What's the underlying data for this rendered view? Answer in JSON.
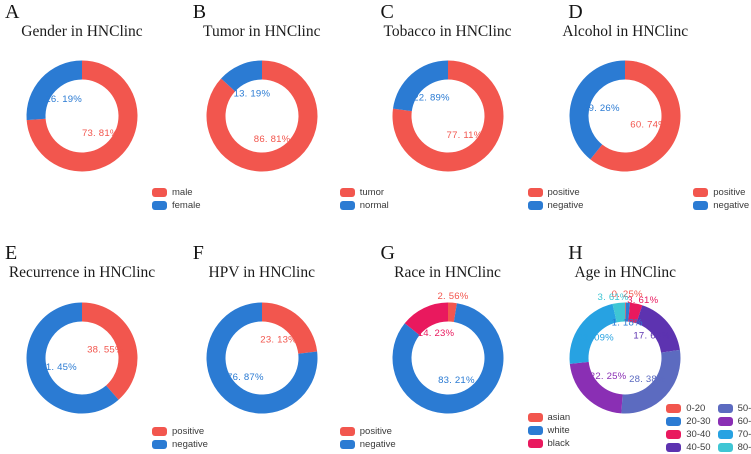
{
  "figure": {
    "background": "#ffffff"
  },
  "chart_data": [
    {
      "type": "pie",
      "subtype": "donut",
      "panel_letter": "A",
      "title": "Gender in HNClinc",
      "labels": [
        "male",
        "female"
      ],
      "values": [
        73.81,
        26.19
      ],
      "value_texts": [
        "73. 81%",
        "26. 19%"
      ],
      "colors": [
        "#f2564e",
        "#2b7bd3"
      ],
      "legend_position": "bottom-right"
    },
    {
      "type": "pie",
      "subtype": "donut",
      "panel_letter": "B",
      "title": "Tumor in HNClinc",
      "labels": [
        "tumor",
        "normal"
      ],
      "values": [
        86.81,
        13.19
      ],
      "value_texts": [
        "86. 81%",
        "13. 19%"
      ],
      "colors": [
        "#f2564e",
        "#2b7bd3"
      ],
      "legend_position": "bottom-right"
    },
    {
      "type": "pie",
      "subtype": "donut",
      "panel_letter": "C",
      "title": "Tobacco in HNClinc",
      "labels": [
        "positive",
        "negative"
      ],
      "values": [
        77.11,
        22.89
      ],
      "value_texts": [
        "77. 11%",
        "22. 89%"
      ],
      "colors": [
        "#f2564e",
        "#2b7bd3"
      ],
      "legend_position": "bottom-right"
    },
    {
      "type": "pie",
      "subtype": "donut",
      "panel_letter": "D",
      "title": "Alcohol in HNClinc",
      "labels": [
        "positive",
        "negative"
      ],
      "values": [
        60.74,
        39.26
      ],
      "value_texts": [
        "60. 74%",
        "39. 26%"
      ],
      "colors": [
        "#f2564e",
        "#2b7bd3"
      ],
      "legend_position": "bottom-right"
    },
    {
      "type": "pie",
      "subtype": "donut",
      "panel_letter": "E",
      "title": "Recurrence in HNClinc",
      "labels": [
        "positive",
        "negative"
      ],
      "values": [
        38.55,
        61.45
      ],
      "value_texts": [
        "38. 55%",
        "61. 45%"
      ],
      "colors": [
        "#f2564e",
        "#2b7bd3"
      ],
      "legend_position": "bottom-right"
    },
    {
      "type": "pie",
      "subtype": "donut",
      "panel_letter": "F",
      "title": "HPV in HNClinc",
      "labels": [
        "positive",
        "negative"
      ],
      "values": [
        23.13,
        76.87
      ],
      "value_texts": [
        "23. 13%",
        "76. 87%"
      ],
      "colors": [
        "#f2564e",
        "#2b7bd3"
      ],
      "legend_position": "bottom-right"
    },
    {
      "type": "pie",
      "subtype": "donut",
      "panel_letter": "G",
      "title": "Race in HNClinc",
      "labels": [
        "asian",
        "white",
        "black"
      ],
      "values": [
        2.56,
        83.21,
        14.23
      ],
      "value_texts": [
        "2. 56%",
        "83. 21%",
        "14. 23%"
      ],
      "colors": [
        "#f2564e",
        "#2b7bd3",
        "#e9195e"
      ],
      "label_r": [
        1.12,
        0.42,
        0.5
      ],
      "legend_position": "bottom-right"
    },
    {
      "type": "pie",
      "subtype": "donut",
      "panel_letter": "H",
      "title": "Age in HNClinc",
      "labels": [
        "0-20",
        "20-30",
        "30-40",
        "40-50",
        "50-60",
        "60-70",
        "70-80",
        "80-90"
      ],
      "values": [
        0.25,
        1.18,
        3.61,
        17.63,
        28.38,
        22.25,
        23.09,
        3.61
      ],
      "value_texts": [
        "0. 25%",
        "1. 18%",
        "3. 61%",
        "17. 63%",
        "28. 38%",
        "22. 25%",
        "23. 09%",
        "3. 61%"
      ],
      "colors": [
        "#f2564e",
        "#2b7bd3",
        "#e9195e",
        "#5d33b0",
        "#5c6bc0",
        "#8a2fb4",
        "#27a2e2",
        "#3fc6d4"
      ],
      "label_r": [
        1.16,
        0.64,
        1.1,
        0.63,
        0.55,
        0.44,
        0.65,
        1.12
      ],
      "label_angles": [
        2,
        3.5,
        17,
        null,
        null,
        null,
        null,
        349
      ],
      "legend_position": "bottom-right",
      "legend_columns": 2
    }
  ]
}
